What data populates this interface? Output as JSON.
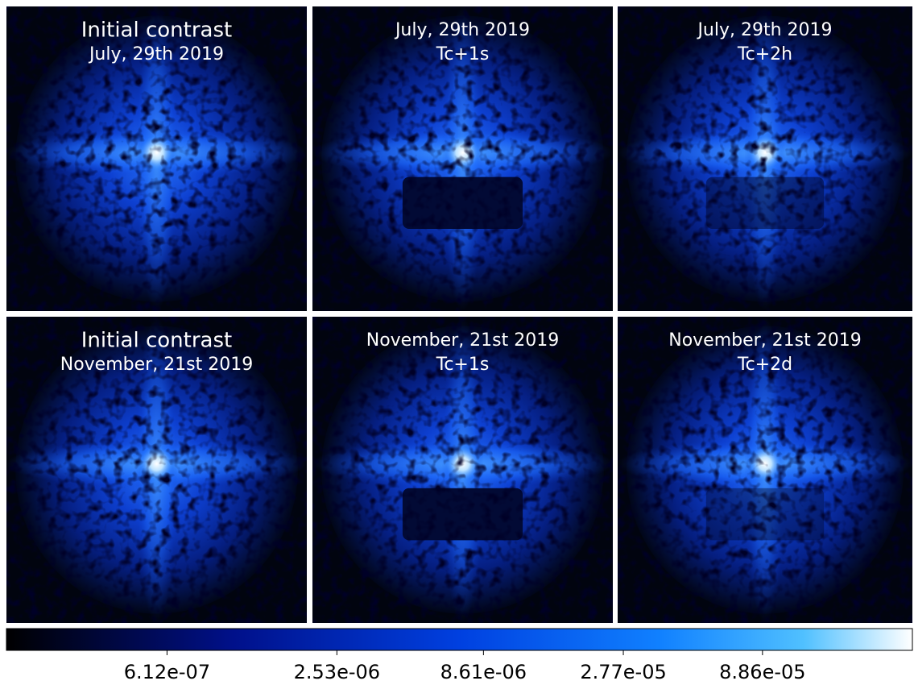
{
  "panels": [
    {
      "lines": [
        "Initial contrast",
        "July, 29th 2019"
      ]
    },
    {
      "lines": [
        "July, 29th 2019",
        "Tc+1s"
      ]
    },
    {
      "lines": [
        "July, 29th 2019",
        "Tc+2h"
      ]
    },
    {
      "lines": [
        "Initial contrast",
        "November, 21st 2019"
      ]
    },
    {
      "lines": [
        "November, 21st 2019",
        "Tc+1s"
      ]
    },
    {
      "lines": [
        "November, 21st 2019",
        "Tc+2d"
      ]
    }
  ],
  "colorbar": {
    "log": true,
    "clim": [
      1.6e-07,
      0.00031
    ],
    "ticks": [
      {
        "value": 6.12e-07,
        "label": "6.12e-07"
      },
      {
        "value": 2.53e-06,
        "label": "2.53e-06"
      },
      {
        "value": 8.61e-06,
        "label": "8.61e-06"
      },
      {
        "value": 2.77e-05,
        "label": "2.77e-05"
      },
      {
        "value": 8.86e-05,
        "label": "8.86e-05"
      }
    ]
  }
}
